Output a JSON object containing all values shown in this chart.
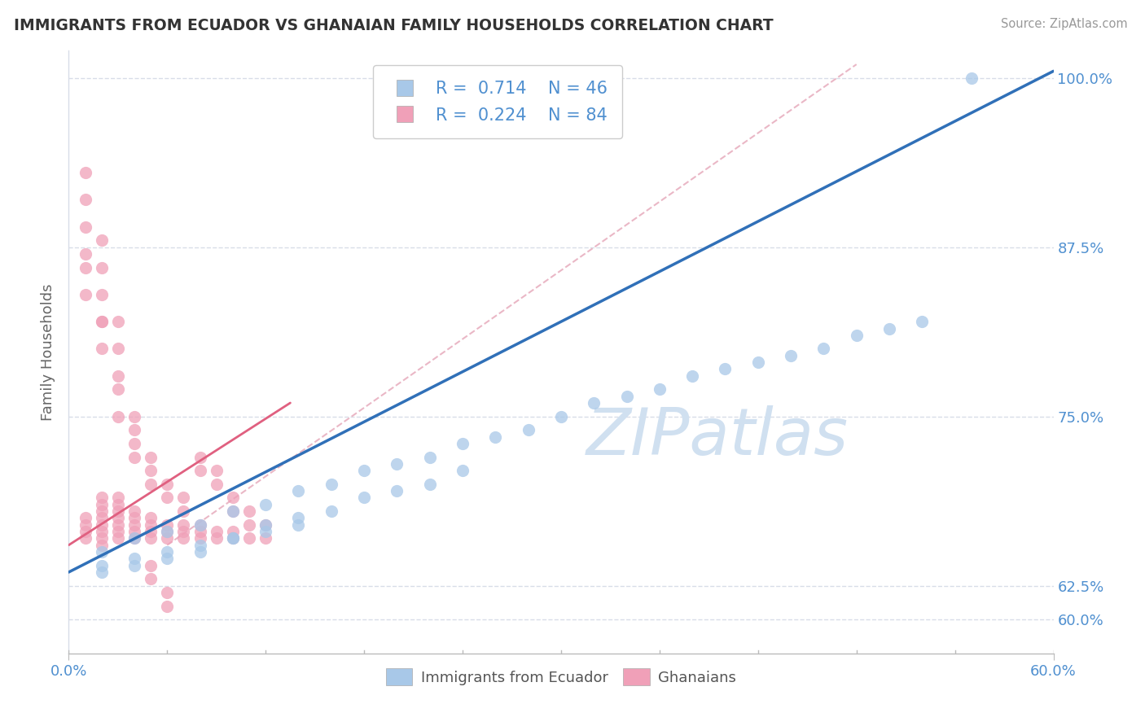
{
  "title": "IMMIGRANTS FROM ECUADOR VS GHANAIAN FAMILY HOUSEHOLDS CORRELATION CHART",
  "source": "Source: ZipAtlas.com",
  "ylabel_label": "Family Households",
  "xlim": [
    0.0,
    0.6
  ],
  "ylim": [
    0.575,
    1.02
  ],
  "blue_R": 0.714,
  "blue_N": 46,
  "pink_R": 0.224,
  "pink_N": 84,
  "blue_color": "#a8c8e8",
  "pink_color": "#f0a0b8",
  "trend_blue_color": "#3070b8",
  "trend_pink_color": "#e06080",
  "diagonal_color": "#e8b0c0",
  "watermark_zip": "ZIP",
  "watermark_atlas": "atlas",
  "watermark_color": "#d0e0f0",
  "grid_color": "#d8dde8",
  "ytick_vals": [
    0.6,
    0.625,
    0.75,
    0.875,
    1.0
  ],
  "ytick_labels": [
    "60.0%",
    "62.5%",
    "75.0%",
    "87.5%",
    "100.0%"
  ],
  "xtick_vals": [
    0.0,
    0.6
  ],
  "xtick_labels": [
    "0.0%",
    "60.0%"
  ],
  "tick_color": "#5090d0",
  "blue_x": [
    0.02,
    0.04,
    0.06,
    0.08,
    0.1,
    0.12,
    0.14,
    0.16,
    0.18,
    0.2,
    0.22,
    0.24,
    0.26,
    0.28,
    0.3,
    0.32,
    0.34,
    0.36,
    0.38,
    0.4,
    0.42,
    0.44,
    0.46,
    0.48,
    0.5,
    0.52,
    0.02,
    0.04,
    0.06,
    0.08,
    0.1,
    0.12,
    0.14,
    0.16,
    0.18,
    0.2,
    0.22,
    0.24,
    0.02,
    0.04,
    0.06,
    0.08,
    0.1,
    0.12,
    0.14,
    0.55
  ],
  "blue_y": [
    0.65,
    0.66,
    0.665,
    0.67,
    0.68,
    0.685,
    0.695,
    0.7,
    0.71,
    0.715,
    0.72,
    0.73,
    0.735,
    0.74,
    0.75,
    0.76,
    0.765,
    0.77,
    0.78,
    0.785,
    0.79,
    0.795,
    0.8,
    0.81,
    0.815,
    0.82,
    0.64,
    0.645,
    0.65,
    0.655,
    0.66,
    0.67,
    0.675,
    0.68,
    0.69,
    0.695,
    0.7,
    0.71,
    0.635,
    0.64,
    0.645,
    0.65,
    0.66,
    0.665,
    0.67,
    1.0
  ],
  "pink_x": [
    0.01,
    0.01,
    0.01,
    0.01,
    0.02,
    0.02,
    0.02,
    0.02,
    0.02,
    0.02,
    0.02,
    0.02,
    0.03,
    0.03,
    0.03,
    0.03,
    0.03,
    0.03,
    0.03,
    0.04,
    0.04,
    0.04,
    0.04,
    0.04,
    0.05,
    0.05,
    0.05,
    0.05,
    0.06,
    0.06,
    0.06,
    0.07,
    0.07,
    0.07,
    0.08,
    0.08,
    0.08,
    0.09,
    0.09,
    0.1,
    0.1,
    0.11,
    0.01,
    0.01,
    0.01,
    0.01,
    0.01,
    0.01,
    0.02,
    0.02,
    0.02,
    0.02,
    0.02,
    0.02,
    0.03,
    0.03,
    0.03,
    0.03,
    0.03,
    0.04,
    0.04,
    0.04,
    0.04,
    0.05,
    0.05,
    0.05,
    0.06,
    0.06,
    0.07,
    0.07,
    0.08,
    0.08,
    0.09,
    0.09,
    0.1,
    0.1,
    0.11,
    0.11,
    0.12,
    0.12,
    0.05,
    0.05,
    0.06,
    0.06
  ],
  "pink_y": [
    0.66,
    0.665,
    0.67,
    0.675,
    0.655,
    0.66,
    0.665,
    0.67,
    0.675,
    0.68,
    0.685,
    0.69,
    0.66,
    0.665,
    0.67,
    0.675,
    0.68,
    0.685,
    0.69,
    0.66,
    0.665,
    0.67,
    0.675,
    0.68,
    0.66,
    0.665,
    0.67,
    0.675,
    0.66,
    0.665,
    0.67,
    0.66,
    0.665,
    0.67,
    0.66,
    0.665,
    0.67,
    0.66,
    0.665,
    0.66,
    0.665,
    0.66,
    0.87,
    0.89,
    0.91,
    0.93,
    0.84,
    0.86,
    0.82,
    0.84,
    0.86,
    0.88,
    0.8,
    0.82,
    0.78,
    0.8,
    0.82,
    0.75,
    0.77,
    0.73,
    0.75,
    0.72,
    0.74,
    0.7,
    0.72,
    0.71,
    0.69,
    0.7,
    0.68,
    0.69,
    0.71,
    0.72,
    0.7,
    0.71,
    0.68,
    0.69,
    0.67,
    0.68,
    0.66,
    0.67,
    0.64,
    0.63,
    0.62,
    0.61
  ]
}
